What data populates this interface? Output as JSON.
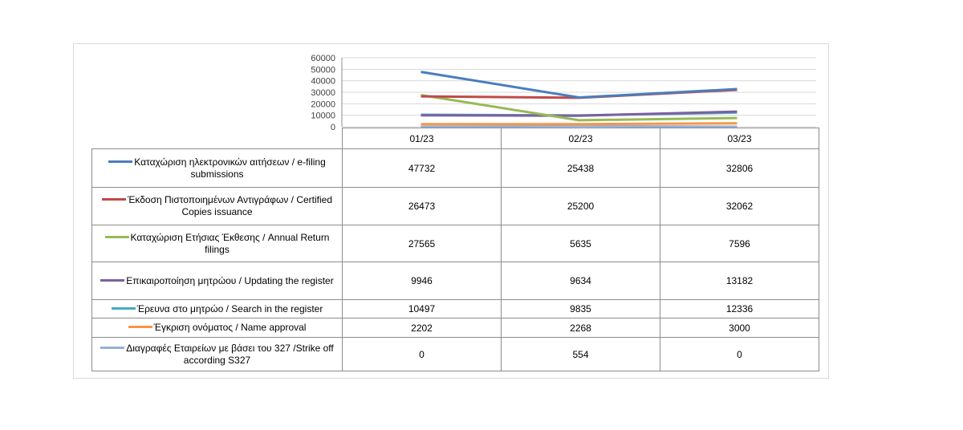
{
  "chart_data": {
    "type": "line",
    "categories": [
      "01/23",
      "02/23",
      "03/23"
    ],
    "ylim": [
      0,
      60000
    ],
    "yticks": [
      "0",
      "10000",
      "20000",
      "30000",
      "40000",
      "50000",
      "60000"
    ],
    "grid": true,
    "legend": "data-table",
    "series": [
      {
        "name": "Καταχώριση ηλεκτρονικών αιτήσεων / e-filing submissions",
        "color": "#4a7ebb",
        "values": [
          47732,
          25438,
          32806
        ]
      },
      {
        "name": "Έκδοση Πιστοποιημένων Αντιγράφων / Certified Copies issuance",
        "color": "#be4b48",
        "values": [
          26473,
          25200,
          32062
        ]
      },
      {
        "name": "Καταχώριση Ετήσιας Έκθεσης / Annual Return filings",
        "color": "#98b954",
        "values": [
          27565,
          5635,
          7596
        ]
      },
      {
        "name": "Επικαιροποίηση μητρώου / Updating the register",
        "color": "#7d60a0",
        "values": [
          9946,
          9634,
          13182
        ]
      },
      {
        "name": "Έρευνα στο μητρώο / Search in the register",
        "color": "#46aac5",
        "values": [
          10497,
          9835,
          12336
        ]
      },
      {
        "name": "Έγκριση ονόματος / Name approval",
        "color": "#f79646",
        "values": [
          2202,
          2268,
          3000
        ]
      },
      {
        "name": "Διαγραφές Εταιρείων με βάσει του 327 /Strike off according S327",
        "color": "#94b0d9",
        "values": [
          0,
          554,
          0
        ]
      }
    ]
  }
}
